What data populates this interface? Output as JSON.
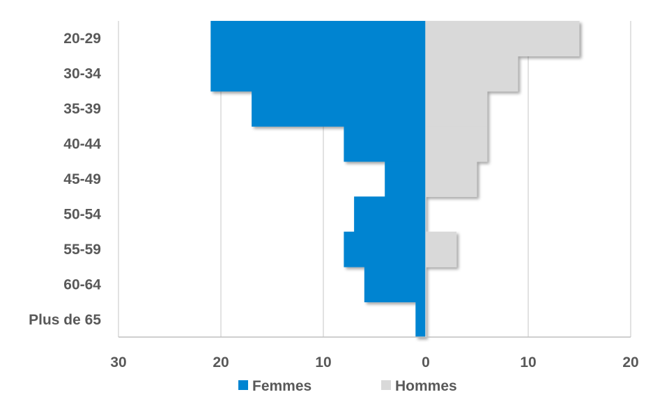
{
  "chart_data": {
    "type": "bar",
    "orientation": "horizontal",
    "layout": "population-pyramid",
    "categories": [
      "20-29",
      "30-34",
      "35-39",
      "40-44",
      "45-49",
      "50-54",
      "55-59",
      "60-64",
      "Plus de 65"
    ],
    "series": [
      {
        "name": "Femmes",
        "color": "#0084D1",
        "values": [
          21,
          21,
          17,
          8,
          4,
          7,
          8,
          6,
          1
        ]
      },
      {
        "name": "Hommes",
        "color": "#D9D9D9",
        "values": [
          15,
          9,
          6,
          6,
          5,
          0,
          3,
          0,
          0
        ]
      }
    ],
    "xlim": [
      -30,
      20
    ],
    "xticks": [
      -30,
      -20,
      -10,
      0,
      10,
      20
    ],
    "xtick_labels": [
      "30",
      "20",
      "10",
      "0",
      "10",
      "20"
    ],
    "grid": true,
    "legend_position": "bottom"
  }
}
